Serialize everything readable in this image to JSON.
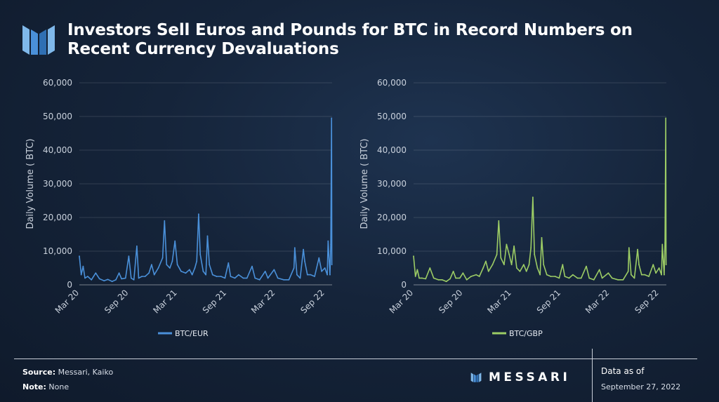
{
  "header": {
    "title": "Investors Sell Euros and Pounds for BTC in Record Numbers on Recent Currency Devaluations"
  },
  "colors": {
    "eur_line": "#4a90d9",
    "gbp_line": "#9ccc65",
    "brand_light": "#7fb8ea",
    "brand_dark": "#2f6fb3"
  },
  "footer": {
    "source_label": "Source:",
    "source_value": "Messari, Kaiko",
    "note_label": "Note:",
    "note_value": "None",
    "brand": "MESSARI",
    "data_as_of_label": "Data as of",
    "data_as_of_date": "September 27, 2022"
  },
  "chart_data": [
    {
      "type": "line",
      "ylabel": "Daily Volume ( BTC)",
      "ylim": [
        0,
        60000
      ],
      "yticks": [
        "0",
        "10,000",
        "20,000",
        "30,000",
        "40,000",
        "50,000",
        "60,000"
      ],
      "xtick_labels": [
        "Mar 20",
        "Sep 20",
        "Mar 21",
        "Sep 21",
        "Mar 22",
        "Sep 22"
      ],
      "grid": true,
      "legend_position": "bottom-center",
      "series": [
        {
          "name": "BTC/EUR",
          "points": [
            [
              "2020-03-01",
              8500
            ],
            [
              "2020-03-08",
              3000
            ],
            [
              "2020-03-15",
              5500
            ],
            [
              "2020-03-22",
              2000
            ],
            [
              "2020-04-01",
              2500
            ],
            [
              "2020-04-15",
              1500
            ],
            [
              "2020-05-01",
              3500
            ],
            [
              "2020-05-15",
              1800
            ],
            [
              "2020-06-01",
              1200
            ],
            [
              "2020-06-15",
              1600
            ],
            [
              "2020-07-01",
              1000
            ],
            [
              "2020-07-15",
              1500
            ],
            [
              "2020-07-27",
              3500
            ],
            [
              "2020-08-05",
              1800
            ],
            [
              "2020-08-20",
              2000
            ],
            [
              "2020-09-01",
              8500
            ],
            [
              "2020-09-10",
              2000
            ],
            [
              "2020-09-20",
              1500
            ],
            [
              "2020-10-01",
              11500
            ],
            [
              "2020-10-08",
              2000
            ],
            [
              "2020-10-20",
              2500
            ],
            [
              "2020-11-01",
              2500
            ],
            [
              "2020-11-15",
              3500
            ],
            [
              "2020-11-25",
              6000
            ],
            [
              "2020-12-05",
              3000
            ],
            [
              "2020-12-20",
              5000
            ],
            [
              "2021-01-05",
              8000
            ],
            [
              "2021-01-12",
              19000
            ],
            [
              "2021-01-20",
              6000
            ],
            [
              "2021-02-01",
              5000
            ],
            [
              "2021-02-10",
              7000
            ],
            [
              "2021-02-20",
              13000
            ],
            [
              "2021-03-01",
              6000
            ],
            [
              "2021-03-15",
              4000
            ],
            [
              "2021-04-01",
              3500
            ],
            [
              "2021-04-15",
              4500
            ],
            [
              "2021-04-25",
              3000
            ],
            [
              "2021-05-05",
              5000
            ],
            [
              "2021-05-12",
              7000
            ],
            [
              "2021-05-19",
              21000
            ],
            [
              "2021-05-25",
              9000
            ],
            [
              "2021-06-05",
              4000
            ],
            [
              "2021-06-15",
              3000
            ],
            [
              "2021-06-21",
              14500
            ],
            [
              "2021-06-28",
              6000
            ],
            [
              "2021-07-10",
              3000
            ],
            [
              "2021-07-25",
              2500
            ],
            [
              "2021-08-10",
              2500
            ],
            [
              "2021-08-25",
              2000
            ],
            [
              "2021-09-07",
              6500
            ],
            [
              "2021-09-15",
              2500
            ],
            [
              "2021-10-01",
              2000
            ],
            [
              "2021-10-15",
              3000
            ],
            [
              "2021-11-01",
              2000
            ],
            [
              "2021-11-15",
              2000
            ],
            [
              "2021-12-04",
              5500
            ],
            [
              "2021-12-15",
              2000
            ],
            [
              "2022-01-01",
              1500
            ],
            [
              "2022-01-22",
              4000
            ],
            [
              "2022-02-01",
              2000
            ],
            [
              "2022-02-24",
              4500
            ],
            [
              "2022-03-10",
              2000
            ],
            [
              "2022-04-01",
              1500
            ],
            [
              "2022-04-20",
              1500
            ],
            [
              "2022-05-09",
              5000
            ],
            [
              "2022-05-12",
              11000
            ],
            [
              "2022-05-20",
              3000
            ],
            [
              "2022-06-01",
              2000
            ],
            [
              "2022-06-13",
              10500
            ],
            [
              "2022-06-18",
              7000
            ],
            [
              "2022-06-28",
              3000
            ],
            [
              "2022-07-10",
              3000
            ],
            [
              "2022-07-25",
              2500
            ],
            [
              "2022-08-10",
              8000
            ],
            [
              "2022-08-20",
              4000
            ],
            [
              "2022-09-01",
              5000
            ],
            [
              "2022-09-10",
              3000
            ],
            [
              "2022-09-13",
              13000
            ],
            [
              "2022-09-20",
              3000
            ],
            [
              "2022-09-23",
              12000
            ],
            [
              "2022-09-26",
              49500
            ],
            [
              "2022-09-27",
              6000
            ]
          ]
        }
      ]
    },
    {
      "type": "line",
      "ylabel": "Daily Volume ( BTC)",
      "ylim": [
        0,
        60000
      ],
      "yticks": [
        "0",
        "10,000",
        "20,000",
        "30,000",
        "40,000",
        "50,000",
        "60,000"
      ],
      "xtick_labels": [
        "Mar 20",
        "Sep 20",
        "Mar 21",
        "Sep 21",
        "Mar 22",
        "Sep 22"
      ],
      "grid": true,
      "legend_position": "bottom-center",
      "series": [
        {
          "name": "BTC/GBP",
          "points": [
            [
              "2020-03-01",
              8500
            ],
            [
              "2020-03-08",
              2500
            ],
            [
              "2020-03-15",
              4500
            ],
            [
              "2020-03-22",
              2000
            ],
            [
              "2020-04-01",
              2000
            ],
            [
              "2020-04-15",
              1800
            ],
            [
              "2020-05-01",
              5000
            ],
            [
              "2020-05-15",
              2000
            ],
            [
              "2020-06-01",
              1500
            ],
            [
              "2020-06-15",
              1500
            ],
            [
              "2020-07-01",
              1000
            ],
            [
              "2020-07-15",
              1800
            ],
            [
              "2020-07-27",
              4000
            ],
            [
              "2020-08-05",
              2000
            ],
            [
              "2020-08-20",
              2000
            ],
            [
              "2020-09-01",
              3500
            ],
            [
              "2020-09-15",
              1500
            ],
            [
              "2020-10-01",
              2500
            ],
            [
              "2020-10-20",
              3000
            ],
            [
              "2020-11-01",
              2500
            ],
            [
              "2020-11-15",
              5000
            ],
            [
              "2020-11-25",
              7000
            ],
            [
              "2020-12-05",
              4000
            ],
            [
              "2020-12-20",
              6000
            ],
            [
              "2021-01-05",
              9000
            ],
            [
              "2021-01-12",
              19000
            ],
            [
              "2021-01-20",
              8000
            ],
            [
              "2021-02-01",
              6000
            ],
            [
              "2021-02-10",
              12000
            ],
            [
              "2021-02-20",
              9000
            ],
            [
              "2021-03-01",
              6000
            ],
            [
              "2021-03-10",
              11500
            ],
            [
              "2021-03-20",
              5000
            ],
            [
              "2021-04-01",
              4000
            ],
            [
              "2021-04-15",
              6000
            ],
            [
              "2021-04-25",
              4000
            ],
            [
              "2021-05-05",
              6000
            ],
            [
              "2021-05-12",
              11000
            ],
            [
              "2021-05-19",
              26000
            ],
            [
              "2021-05-25",
              9000
            ],
            [
              "2021-06-05",
              5000
            ],
            [
              "2021-06-15",
              3000
            ],
            [
              "2021-06-21",
              14000
            ],
            [
              "2021-06-28",
              6000
            ],
            [
              "2021-07-10",
              3000
            ],
            [
              "2021-07-25",
              2500
            ],
            [
              "2021-08-10",
              2500
            ],
            [
              "2021-08-25",
              2000
            ],
            [
              "2021-09-07",
              6000
            ],
            [
              "2021-09-15",
              2500
            ],
            [
              "2021-10-01",
              2000
            ],
            [
              "2021-10-15",
              3000
            ],
            [
              "2021-11-01",
              2000
            ],
            [
              "2021-11-15",
              2000
            ],
            [
              "2021-12-04",
              5500
            ],
            [
              "2021-12-15",
              2000
            ],
            [
              "2022-01-01",
              1500
            ],
            [
              "2022-01-22",
              4500
            ],
            [
              "2022-02-01",
              2000
            ],
            [
              "2022-02-24",
              3500
            ],
            [
              "2022-03-10",
              2000
            ],
            [
              "2022-04-01",
              1500
            ],
            [
              "2022-04-20",
              1500
            ],
            [
              "2022-05-09",
              4000
            ],
            [
              "2022-05-12",
              11000
            ],
            [
              "2022-05-20",
              3000
            ],
            [
              "2022-06-01",
              2000
            ],
            [
              "2022-06-13",
              10500
            ],
            [
              "2022-06-18",
              6000
            ],
            [
              "2022-06-28",
              3000
            ],
            [
              "2022-07-10",
              3000
            ],
            [
              "2022-07-25",
              2500
            ],
            [
              "2022-08-10",
              6000
            ],
            [
              "2022-08-20",
              3500
            ],
            [
              "2022-09-01",
              5000
            ],
            [
              "2022-09-10",
              3000
            ],
            [
              "2022-09-13",
              12000
            ],
            [
              "2022-09-20",
              3000
            ],
            [
              "2022-09-23",
              12500
            ],
            [
              "2022-09-26",
              49500
            ],
            [
              "2022-09-27",
              6000
            ]
          ]
        }
      ]
    }
  ]
}
